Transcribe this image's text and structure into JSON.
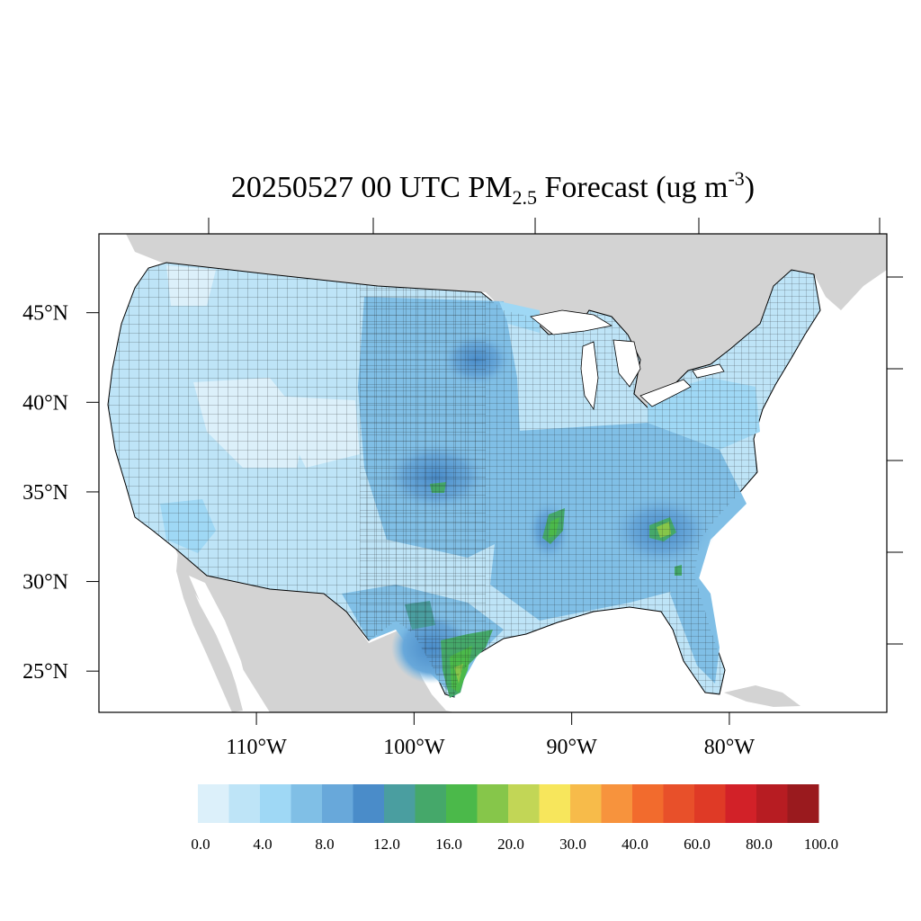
{
  "title": {
    "main": "20250527 00 UTC PM",
    "sub": "2.5",
    "rest": " Forecast (ug m",
    "sup": "-3",
    "close": ")"
  },
  "map": {
    "lon_range": [
      -119.5,
      -70.5
    ],
    "lat_range": [
      22.7,
      49.4
    ],
    "lon_ticks": [
      "110°W",
      "100°W",
      "90°W",
      "80°W"
    ],
    "lon_tick_values": [
      -110,
      -100,
      -90,
      -80
    ],
    "lat_ticks": [
      "45°N",
      "40°N",
      "35°N",
      "30°N",
      "25°N"
    ],
    "lat_tick_values": [
      45,
      40,
      35,
      30,
      25
    ],
    "ocean_color": "#ffffff",
    "outside_land_color": "#d3d3d3",
    "border_color": "#000000",
    "hotspots": [
      {
        "region": "South Texas coast",
        "level": "16.0-20.0"
      },
      {
        "region": "Arkansas / Mississippi delta",
        "level": "16.0-20.0"
      },
      {
        "region": "Northern Georgia",
        "level": "16.0-20.0"
      },
      {
        "region": "Western Oklahoma",
        "level": "12.0-16.0"
      }
    ]
  },
  "colorbar": {
    "colors": [
      "#dcf0fa",
      "#bee4f7",
      "#9fd8f5",
      "#80bfe6",
      "#68a8da",
      "#4a8cc9",
      "#4a9ea0",
      "#45a86a",
      "#4bb94a",
      "#86c64a",
      "#c2d656",
      "#f7e65c",
      "#f7bb4a",
      "#f7933d",
      "#f26b2d",
      "#e8502a",
      "#df3a26",
      "#d22128",
      "#b71c22",
      "#9a1a1e"
    ],
    "labels": [
      "0.0",
      "4.0",
      "8.0",
      "12.0",
      "16.0",
      "20.0",
      "30.0",
      "40.0",
      "60.0",
      "80.0",
      "100.0"
    ]
  }
}
